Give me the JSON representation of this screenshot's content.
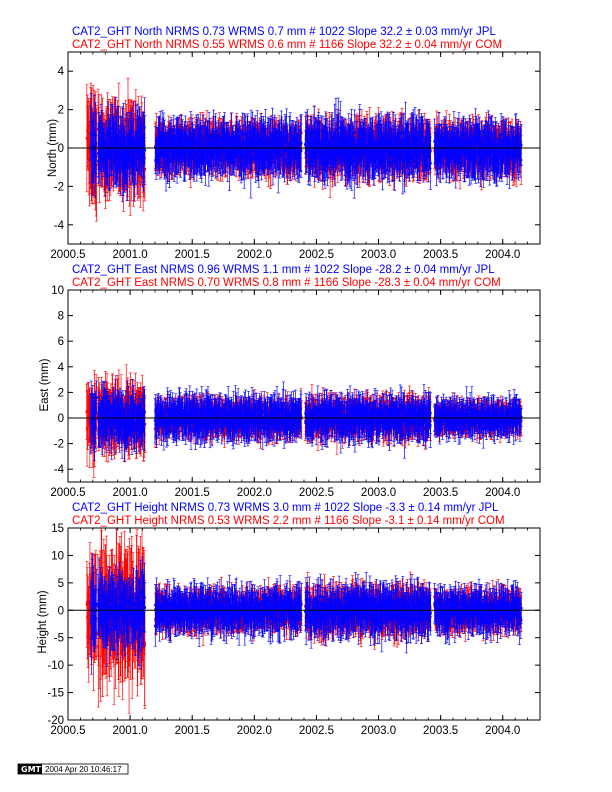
{
  "colors": {
    "jpl": "#0000ff",
    "com": "#ff0000",
    "axis": "#000000",
    "zero_line": "#000000"
  },
  "chart_data": [
    {
      "type": "scatter",
      "component": "North",
      "title_jpl": "CAT2_GHT North NRMS 0.73 WRMS  0.7 mm # 1022 Slope   32.2 ±  0.03 mm/yr JPL",
      "title_com": "CAT2_GHT North NRMS 0.55 WRMS  0.6 mm # 1166 Slope   32.2 ±  0.04 mm/yr COM",
      "xlabel": "",
      "ylabel": "North (mm)",
      "xlim": [
        2000.5,
        2004.3
      ],
      "ylim": [
        -5,
        5
      ],
      "xticks": [
        "2000.5",
        "2001.0",
        "2001.5",
        "2002.0",
        "2002.5",
        "2003.0",
        "2003.5",
        "2004.0"
      ],
      "yticks": [
        "-4",
        "-2",
        "0",
        "2",
        "4"
      ],
      "grid": false,
      "error_bars": true,
      "zero_line": true,
      "series": [
        {
          "name": "JPL",
          "color": "#0000ff",
          "count": 1022,
          "segments": [
            [
              2000.68,
              2000.73,
              1.5
            ],
            [
              2000.74,
              2001.12,
              1.3
            ],
            [
              2001.2,
              2002.38,
              1.0
            ],
            [
              2002.41,
              2003.42,
              1.1
            ],
            [
              2003.45,
              2004.15,
              1.0
            ]
          ]
        },
        {
          "name": "COM",
          "color": "#ff0000",
          "count": 1166,
          "segments": [
            [
              2000.65,
              2000.73,
              2.0
            ],
            [
              2000.74,
              2001.12,
              1.6
            ],
            [
              2001.2,
              2002.38,
              0.9
            ],
            [
              2002.41,
              2003.42,
              1.0
            ],
            [
              2003.45,
              2004.15,
              0.9
            ]
          ]
        }
      ]
    },
    {
      "type": "scatter",
      "component": "East",
      "title_jpl": "CAT2_GHT East NRMS 0.96 WRMS  1.1 mm # 1022 Slope  -28.2 ±  0.04 mm/yr JPL",
      "title_com": "CAT2_GHT East NRMS 0.70 WRMS  0.8 mm # 1166 Slope  -28.3 ±  0.04 mm/yr COM",
      "xlabel": "",
      "ylabel": "East (mm)",
      "xlim": [
        2000.5,
        2004.3
      ],
      "ylim": [
        -5,
        10
      ],
      "xticks": [
        "2000.5",
        "2001.0",
        "2001.5",
        "2002.0",
        "2002.5",
        "2003.0",
        "2003.5",
        "2004.0"
      ],
      "yticks": [
        "-4",
        "-2",
        "0",
        "2",
        "4",
        "6",
        "8",
        "10"
      ],
      "grid": false,
      "error_bars": true,
      "zero_line": true,
      "series": [
        {
          "name": "JPL",
          "color": "#0000ff",
          "count": 1022,
          "segments": [
            [
              2000.68,
              2000.73,
              1.8
            ],
            [
              2000.74,
              2001.12,
              1.5
            ],
            [
              2001.2,
              2002.38,
              1.2
            ],
            [
              2002.41,
              2003.42,
              1.2
            ],
            [
              2003.45,
              2004.15,
              1.0
            ]
          ]
        },
        {
          "name": "COM",
          "color": "#ff0000",
          "count": 1166,
          "segments": [
            [
              2000.65,
              2000.73,
              2.0
            ],
            [
              2000.74,
              2001.12,
              1.8
            ],
            [
              2001.2,
              2002.38,
              1.0
            ],
            [
              2002.41,
              2003.42,
              1.1
            ],
            [
              2003.45,
              2004.15,
              0.9
            ]
          ]
        }
      ]
    },
    {
      "type": "scatter",
      "component": "Height",
      "title_jpl": "CAT2_GHT Height NRMS 0.73 WRMS  3.0 mm # 1022 Slope   -3.3 ±  0.14 mm/yr JPL",
      "title_com": "CAT2_GHT Height NRMS 0.53 WRMS  2.2 mm # 1166 Slope   -3.1 ±  0.14 mm/yr COM",
      "xlabel": "",
      "ylabel": "Height (mm)",
      "xlim": [
        2000.5,
        2004.3
      ],
      "ylim": [
        -20,
        15
      ],
      "xticks": [
        "2000.5",
        "2001.0",
        "2001.5",
        "2002.0",
        "2002.5",
        "2003.0",
        "2003.5",
        "2004.0"
      ],
      "yticks": [
        "-20",
        "-15",
        "-10",
        "-5",
        "0",
        "5",
        "10",
        "15"
      ],
      "grid": false,
      "error_bars": true,
      "zero_line": true,
      "series": [
        {
          "name": "JPL",
          "color": "#0000ff",
          "count": 1022,
          "segments": [
            [
              2000.68,
              2000.73,
              5.0
            ],
            [
              2000.74,
              2001.12,
              4.5
            ],
            [
              2001.2,
              2002.38,
              3.0
            ],
            [
              2002.41,
              2003.42,
              3.2
            ],
            [
              2003.45,
              2004.15,
              2.8
            ]
          ]
        },
        {
          "name": "COM",
          "color": "#ff0000",
          "count": 1166,
          "segments": [
            [
              2000.65,
              2000.73,
              7.0
            ],
            [
              2000.74,
              2001.12,
              8.0
            ],
            [
              2001.2,
              2002.38,
              2.5
            ],
            [
              2002.41,
              2003.42,
              3.0
            ],
            [
              2003.45,
              2004.15,
              2.5
            ]
          ]
        }
      ]
    }
  ],
  "footer": {
    "logo": "GMT",
    "timestamp": "2004 Apr 20 10:46:17"
  }
}
